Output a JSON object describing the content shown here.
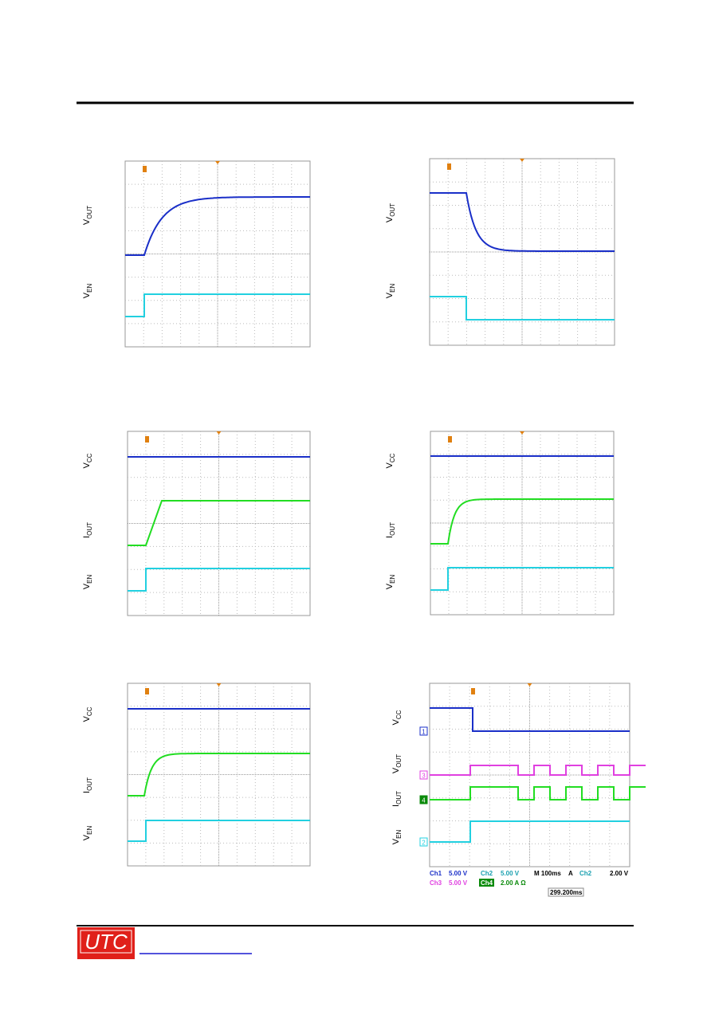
{
  "panels": [
    {
      "labels": [
        {
          "main": "V",
          "sub": "OUT"
        },
        {
          "main": "V",
          "sub": "EN"
        }
      ]
    },
    {
      "labels": [
        {
          "main": "V",
          "sub": "OUT"
        },
        {
          "main": "V",
          "sub": "EN"
        }
      ]
    },
    {
      "labels": [
        {
          "main": "V",
          "sub": "CC"
        },
        {
          "main": "I",
          "sub": "OUT"
        },
        {
          "main": "V",
          "sub": "EN"
        }
      ]
    },
    {
      "labels": [
        {
          "main": "V",
          "sub": "CC"
        },
        {
          "main": "I",
          "sub": "OUT"
        },
        {
          "main": "V",
          "sub": "EN"
        }
      ]
    },
    {
      "labels": [
        {
          "main": "V",
          "sub": "CC"
        },
        {
          "main": "I",
          "sub": "OUT"
        },
        {
          "main": "V",
          "sub": "EN"
        }
      ]
    },
    {
      "labels": [
        {
          "main": "V",
          "sub": "CC"
        },
        {
          "main": "V",
          "sub": "OUT"
        },
        {
          "main": "I",
          "sub": "OUT"
        },
        {
          "main": "V",
          "sub": "EN"
        }
      ]
    }
  ],
  "channel_markers": [
    "1",
    "3",
    "4",
    "2"
  ],
  "scope_readout": [
    "Ch1",
    "5.00 V",
    "Ch2",
    "5.00 V",
    "M 100ms",
    "A",
    "Ch2",
    "2.00 V",
    "Ch3",
    "5.00 V",
    "Ch4",
    "2.00 A Ω",
    "299.200ms"
  ],
  "logo": "UTC"
}
